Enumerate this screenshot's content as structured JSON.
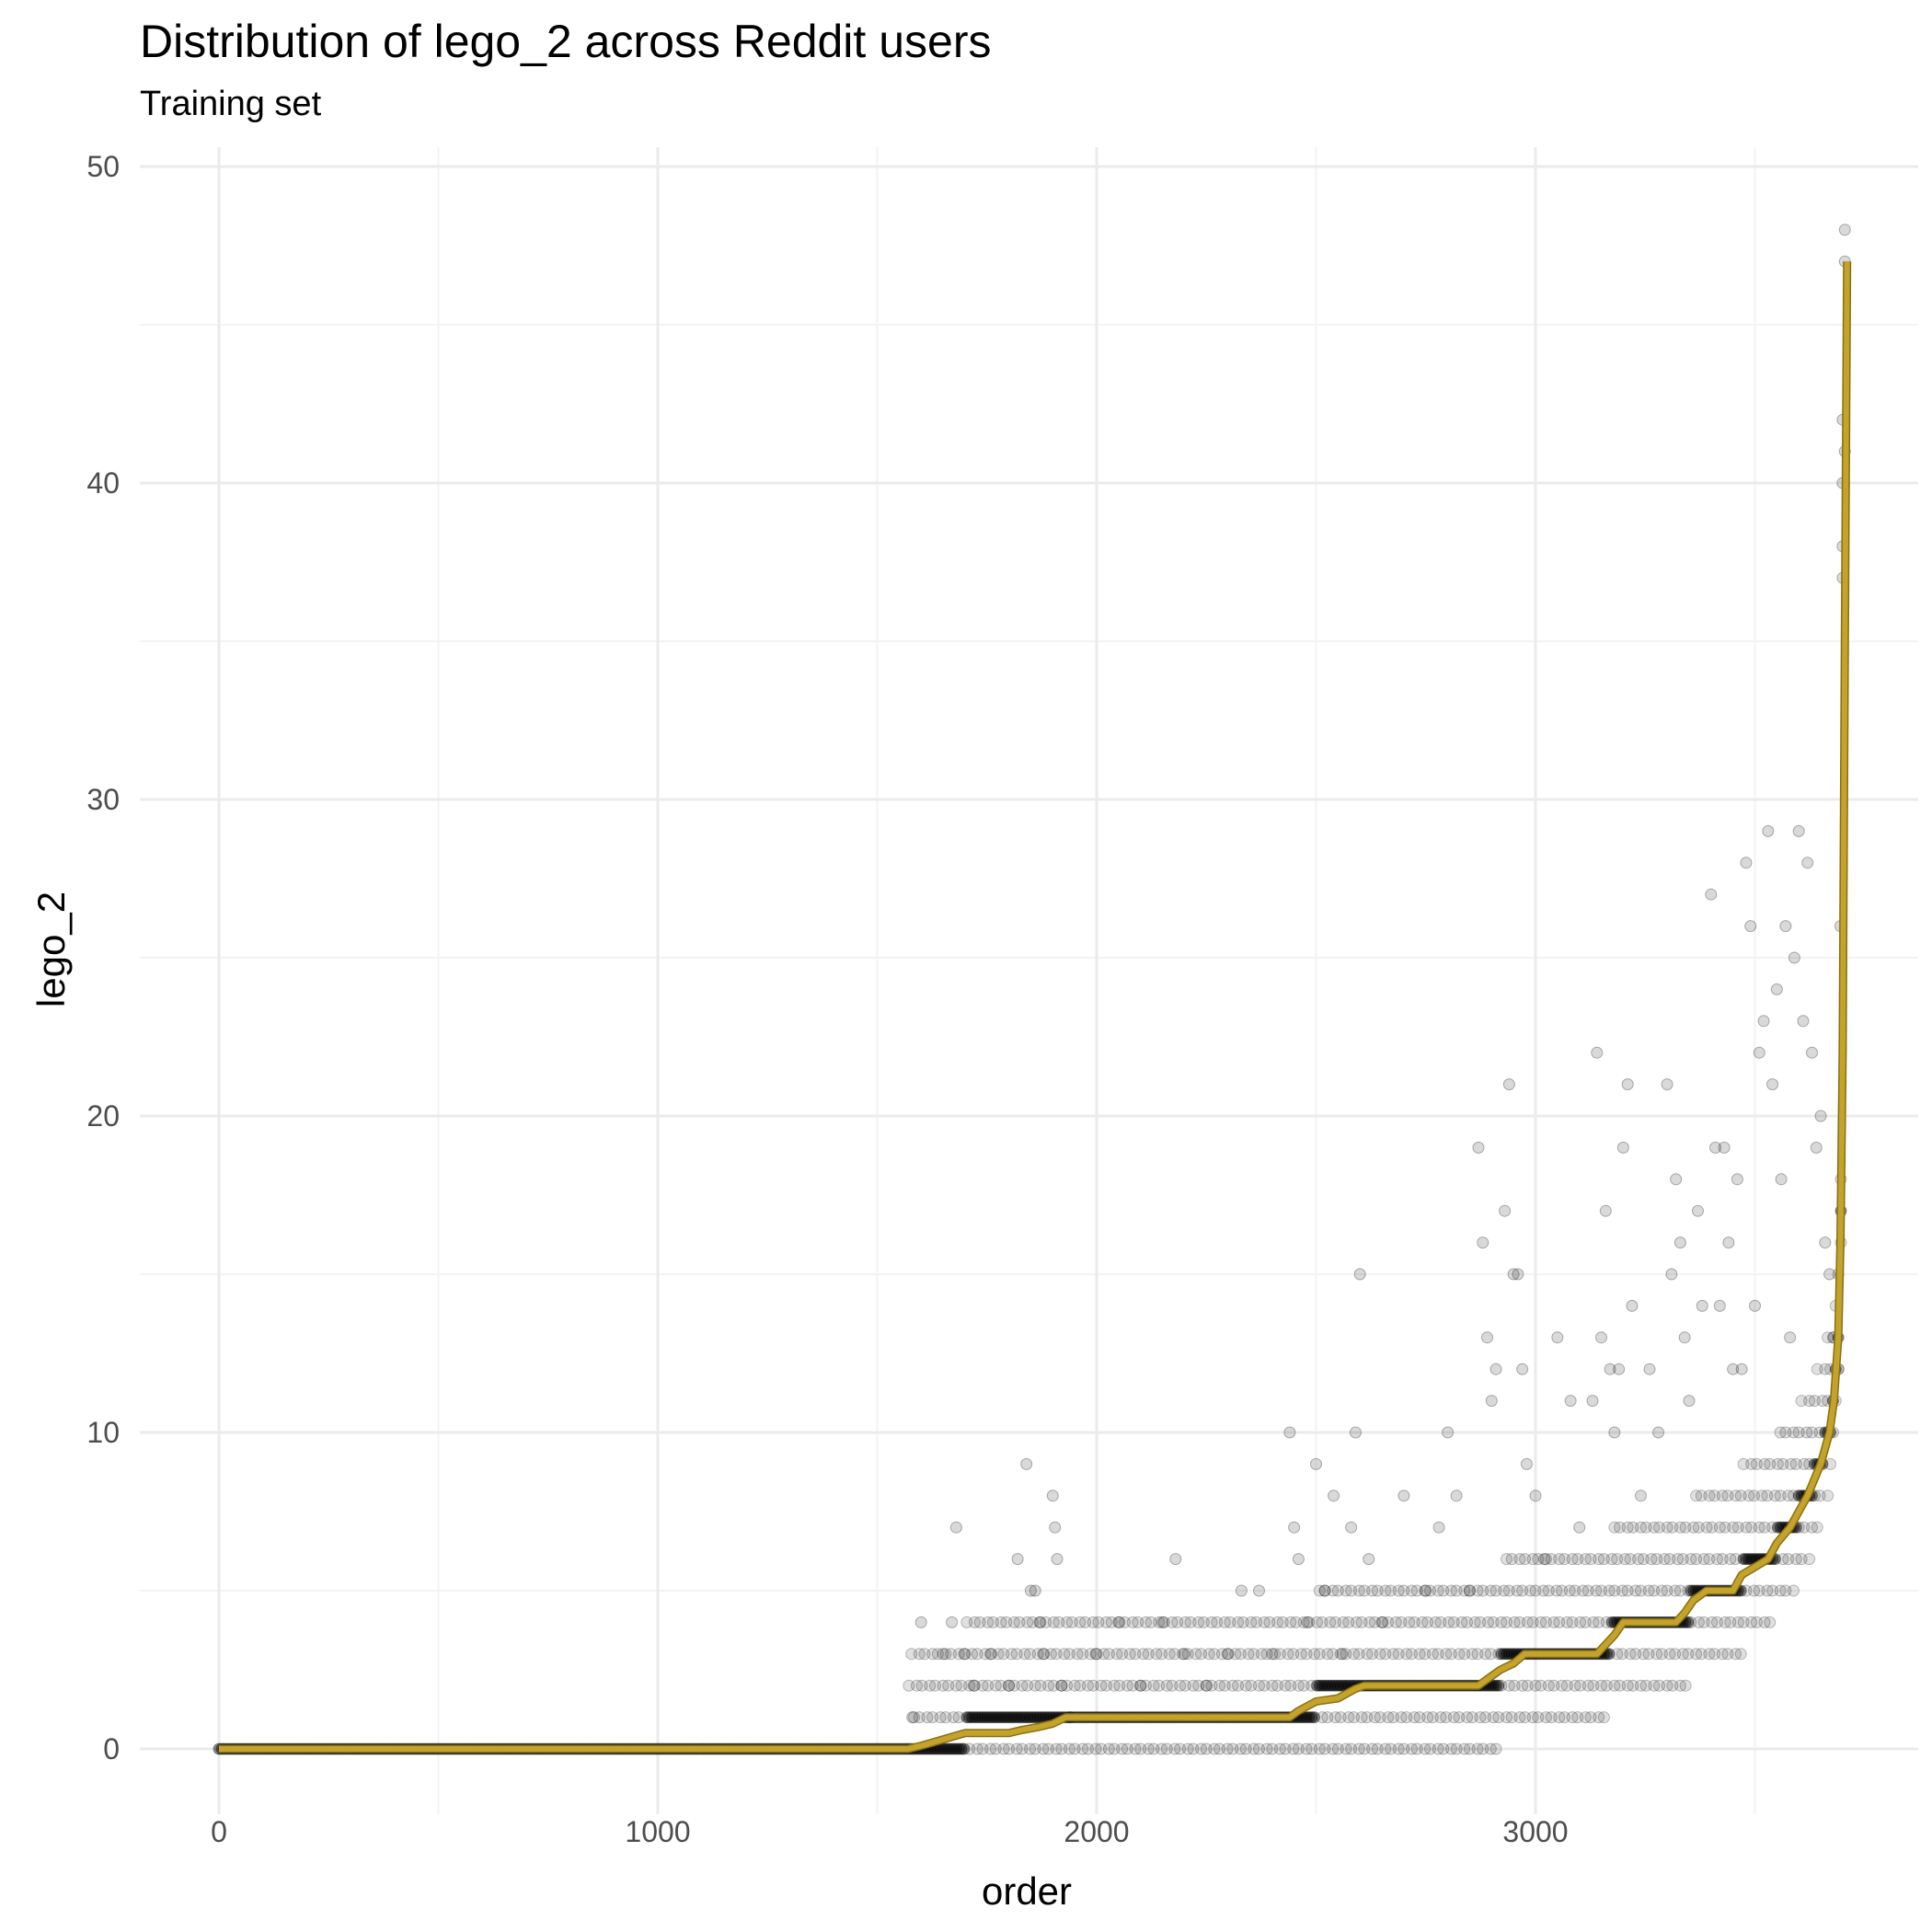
{
  "chart_data": {
    "type": "scatter",
    "title": "Distribution of lego_2 across Reddit users",
    "subtitle": "Training set",
    "xlabel": "order",
    "ylabel": "lego_2",
    "xlim": [
      -180,
      3850
    ],
    "ylim": [
      -2.2,
      50.5
    ],
    "x_ticks": [
      0,
      1000,
      2000,
      3000
    ],
    "y_ticks": [
      0,
      10,
      20,
      30,
      40,
      50
    ],
    "x_minor_ticks": [
      500,
      1500,
      2500,
      3500
    ],
    "y_minor_ticks": [
      5,
      15,
      25,
      35,
      45
    ],
    "grid": true,
    "legend": "none",
    "colors": {
      "points": "#000000",
      "line": "#c9a92f",
      "line_dark": "#8a6f10",
      "grid_major": "#ebebeb",
      "grid_minor": "#f3f3f3"
    },
    "series": [
      {
        "type": "line",
        "values_x": [
          0,
          1570,
          1600,
          1650,
          1700,
          1750,
          1800,
          1830,
          1870,
          1900,
          1930,
          2440,
          2460,
          2500,
          2550,
          2590,
          2610,
          2870,
          2890,
          2920,
          2950,
          2975,
          3140,
          3160,
          3180,
          3200,
          3320,
          3340,
          3360,
          3390,
          3450,
          3470,
          3530,
          3550,
          3580,
          3600,
          3620,
          3650,
          3670,
          3680,
          3690,
          3695,
          3700,
          3705,
          3710
        ],
        "values_y": [
          0,
          0,
          0.1,
          0.3,
          0.5,
          0.5,
          0.5,
          0.6,
          0.7,
          0.8,
          1,
          1,
          1.2,
          1.5,
          1.6,
          1.9,
          2,
          2,
          2.2,
          2.5,
          2.7,
          3,
          3,
          3.3,
          3.6,
          4,
          4,
          4.3,
          4.7,
          5,
          5,
          5.5,
          6,
          6.5,
          7,
          7.5,
          8,
          9,
          10,
          11,
          13,
          16,
          22,
          35,
          47
        ]
      },
      {
        "type": "scatter",
        "points": [
          [
            1580,
            1
          ],
          [
            1600,
            4
          ],
          [
            1650,
            3
          ],
          [
            1670,
            4
          ],
          [
            1680,
            7
          ],
          [
            1700,
            3
          ],
          [
            1720,
            2
          ],
          [
            1760,
            3
          ],
          [
            1800,
            2
          ],
          [
            1820,
            6
          ],
          [
            1840,
            9
          ],
          [
            1850,
            5
          ],
          [
            1860,
            5
          ],
          [
            1870,
            4
          ],
          [
            1880,
            3
          ],
          [
            1900,
            8
          ],
          [
            1905,
            7
          ],
          [
            1910,
            6
          ],
          [
            1920,
            2
          ],
          [
            1940,
            1
          ],
          [
            2000,
            3
          ],
          [
            2050,
            4
          ],
          [
            2100,
            2
          ],
          [
            2150,
            4
          ],
          [
            2180,
            6
          ],
          [
            2200,
            3
          ],
          [
            2250,
            2
          ],
          [
            2300,
            3
          ],
          [
            2330,
            5
          ],
          [
            2370,
            5
          ],
          [
            2400,
            3
          ],
          [
            2440,
            10
          ],
          [
            2450,
            7
          ],
          [
            2460,
            6
          ],
          [
            2480,
            4
          ],
          [
            2500,
            9
          ],
          [
            2520,
            5
          ],
          [
            2540,
            8
          ],
          [
            2560,
            3
          ],
          [
            2580,
            7
          ],
          [
            2590,
            10
          ],
          [
            2600,
            15
          ],
          [
            2620,
            6
          ],
          [
            2650,
            4
          ],
          [
            2700,
            8
          ],
          [
            2750,
            5
          ],
          [
            2780,
            7
          ],
          [
            2800,
            10
          ],
          [
            2820,
            8
          ],
          [
            2850,
            5
          ],
          [
            2870,
            19
          ],
          [
            2880,
            16
          ],
          [
            2890,
            13
          ],
          [
            2900,
            11
          ],
          [
            2910,
            12
          ],
          [
            2930,
            17
          ],
          [
            2940,
            21
          ],
          [
            2950,
            15
          ],
          [
            2960,
            15
          ],
          [
            2970,
            12
          ],
          [
            2980,
            9
          ],
          [
            3000,
            8
          ],
          [
            3020,
            6
          ],
          [
            3050,
            13
          ],
          [
            3080,
            11
          ],
          [
            3100,
            7
          ],
          [
            3130,
            11
          ],
          [
            3140,
            22
          ],
          [
            3150,
            13
          ],
          [
            3160,
            17
          ],
          [
            3170,
            12
          ],
          [
            3180,
            10
          ],
          [
            3190,
            12
          ],
          [
            3200,
            19
          ],
          [
            3210,
            21
          ],
          [
            3220,
            14
          ],
          [
            3240,
            8
          ],
          [
            3260,
            12
          ],
          [
            3280,
            10
          ],
          [
            3300,
            21
          ],
          [
            3310,
            15
          ],
          [
            3320,
            18
          ],
          [
            3330,
            16
          ],
          [
            3340,
            13
          ],
          [
            3350,
            11
          ],
          [
            3370,
            17
          ],
          [
            3380,
            14
          ],
          [
            3400,
            27
          ],
          [
            3410,
            19
          ],
          [
            3420,
            14
          ],
          [
            3430,
            19
          ],
          [
            3440,
            16
          ],
          [
            3450,
            12
          ],
          [
            3460,
            18
          ],
          [
            3470,
            12
          ],
          [
            3480,
            28
          ],
          [
            3490,
            26
          ],
          [
            3500,
            14
          ],
          [
            3510,
            22
          ],
          [
            3520,
            23
          ],
          [
            3530,
            29
          ],
          [
            3540,
            21
          ],
          [
            3550,
            24
          ],
          [
            3560,
            18
          ],
          [
            3570,
            26
          ],
          [
            3580,
            13
          ],
          [
            3590,
            25
          ],
          [
            3600,
            29
          ],
          [
            3610,
            23
          ],
          [
            3620,
            28
          ],
          [
            3630,
            22
          ],
          [
            3640,
            19
          ],
          [
            3650,
            20
          ],
          [
            3660,
            16
          ],
          [
            3670,
            15
          ],
          [
            3680,
            13
          ],
          [
            3690,
            12
          ],
          [
            3695,
            26
          ],
          [
            3700,
            42
          ],
          [
            3700,
            40
          ],
          [
            3700,
            38
          ],
          [
            3700,
            37
          ],
          [
            3705,
            48
          ],
          [
            3705,
            47
          ],
          [
            3705,
            41
          ]
        ]
      }
    ]
  }
}
